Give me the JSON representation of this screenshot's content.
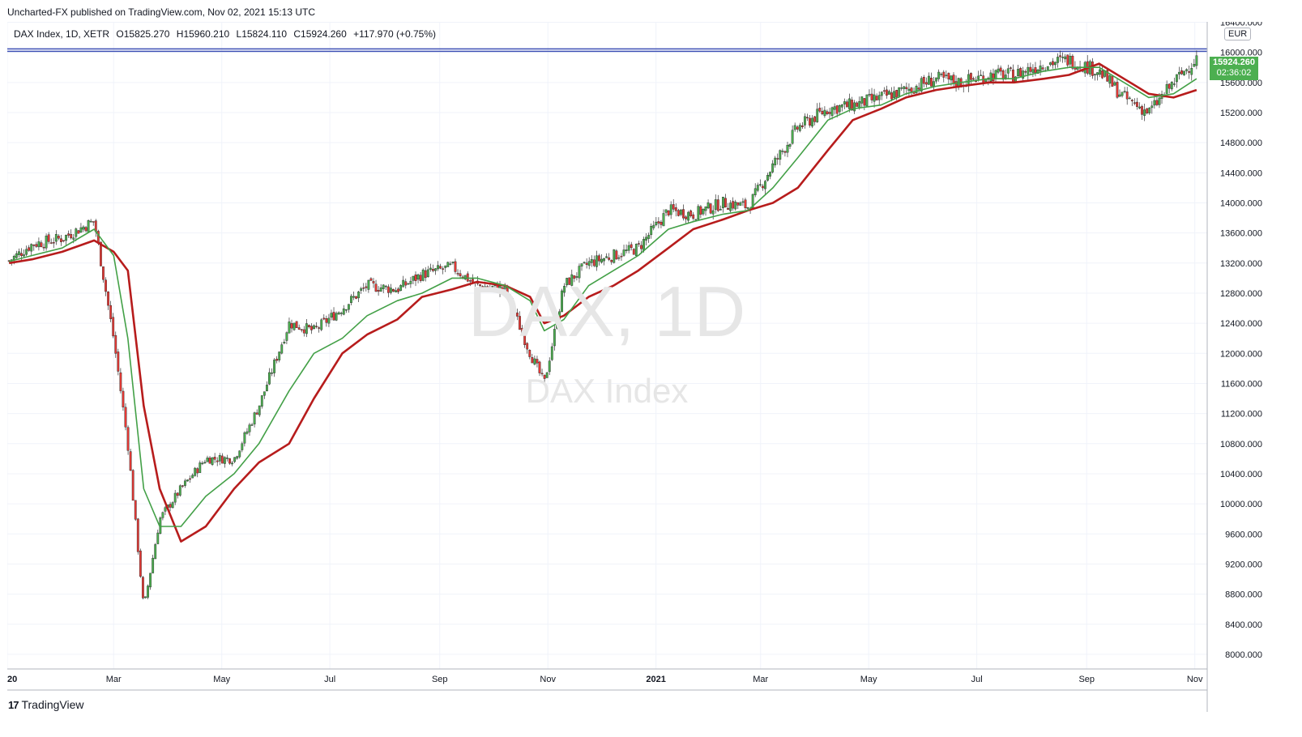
{
  "publisher_line": "Uncharted-FX published on TradingView.com, Nov 02, 2021 15:13 UTC",
  "symbol_info": "DAX Index, 1D, XETR",
  "ohlc": {
    "open": "O15825.270",
    "high": "H15960.210",
    "low": "L15824.110",
    "close": "C15924.260",
    "change": "+117.970 (+0.75%)"
  },
  "currency": "EUR",
  "last_price": {
    "value": "15924.260",
    "countdown": "02:36:02",
    "color": "#4caf50"
  },
  "watermark": {
    "symbol": "DAX, 1D",
    "name": "DAX Index"
  },
  "branding": {
    "logo": "17",
    "name": "TradingView"
  },
  "colors": {
    "up": "#4caf50",
    "down": "#e53935",
    "fast_ma": "#43a047",
    "slow_ma": "#b71c1c",
    "resistance": "#3f51b5"
  },
  "chart_data": {
    "type": "line",
    "title": "",
    "xlabel": "",
    "ylabel": "",
    "ylim": [
      7800,
      16400
    ],
    "grid": true,
    "x_ticks": [
      "2020",
      "Mar",
      "May",
      "Jul",
      "Sep",
      "Nov",
      "2021",
      "Mar",
      "May",
      "Jul",
      "Sep",
      "Nov"
    ],
    "y_ticks": [
      "8000.000",
      "8400.000",
      "8800.000",
      "9200.000",
      "9600.000",
      "10000.000",
      "10400.000",
      "10800.000",
      "11200.000",
      "11600.000",
      "12000.000",
      "12400.000",
      "12800.000",
      "13200.000",
      "13600.000",
      "14000.000",
      "14400.000",
      "14800.000",
      "15200.000",
      "15600.000",
      "16000.000",
      "16400.000"
    ],
    "resistance_level": 16030,
    "x": [
      "2020-01-02",
      "2020-01-15",
      "2020-02-01",
      "2020-02-19",
      "2020-03-01",
      "2020-03-09",
      "2020-03-18",
      "2020-03-27",
      "2020-04-08",
      "2020-04-22",
      "2020-05-08",
      "2020-05-22",
      "2020-06-08",
      "2020-06-22",
      "2020-07-08",
      "2020-07-22",
      "2020-08-08",
      "2020-08-22",
      "2020-09-08",
      "2020-09-22",
      "2020-10-08",
      "2020-10-22",
      "2020-10-30",
      "2020-11-10",
      "2020-11-24",
      "2020-12-08",
      "2020-12-22",
      "2021-01-08",
      "2021-01-22",
      "2021-02-08",
      "2021-02-22",
      "2021-03-08",
      "2021-03-22",
      "2021-04-08",
      "2021-04-22",
      "2021-05-08",
      "2021-05-22",
      "2021-06-08",
      "2021-06-22",
      "2021-07-08",
      "2021-07-22",
      "2021-08-08",
      "2021-08-22",
      "2021-09-08",
      "2021-09-22",
      "2021-10-06",
      "2021-10-20",
      "2021-11-02"
    ],
    "series": [
      {
        "values": [
          13230,
          13450,
          13530,
          13760,
          12200,
          10800,
          8600,
          9800,
          10200,
          10600,
          10600,
          11300,
          12400,
          12300,
          12600,
          12900,
          12850,
          13050,
          13150,
          12900,
          12850,
          12000,
          11600,
          12900,
          13200,
          13300,
          13400,
          13900,
          13850,
          14000,
          13950,
          14500,
          15000,
          15250,
          15300,
          15400,
          15500,
          15650,
          15600,
          15700,
          15700,
          15850,
          15900,
          15750,
          15400,
          15200,
          15600,
          15924
        ]
      },
      {
        "values": [
          13220,
          13300,
          13400,
          13650,
          13300,
          12200,
          10200,
          9700,
          9700,
          10100,
          10400,
          10800,
          11500,
          12000,
          12200,
          12500,
          12700,
          12800,
          13000,
          13000,
          12900,
          12700,
          12300,
          12450,
          12900,
          13100,
          13300,
          13650,
          13750,
          13850,
          13900,
          14200,
          14600,
          15100,
          15250,
          15300,
          15450,
          15550,
          15600,
          15650,
          15650,
          15750,
          15800,
          15800,
          15600,
          15400,
          15450,
          15650
        ]
      },
      {
        "values": [
          13200,
          13250,
          13350,
          13500,
          13350,
          13100,
          11300,
          10200,
          9500,
          9700,
          10200,
          10550,
          10800,
          11400,
          12000,
          12250,
          12450,
          12750,
          12850,
          12950,
          12900,
          12750,
          12400,
          12500,
          12750,
          12900,
          13100,
          13400,
          13650,
          13780,
          13900,
          14000,
          14200,
          14700,
          15100,
          15250,
          15400,
          15500,
          15550,
          15600,
          15600,
          15650,
          15700,
          15850,
          15650,
          15450,
          15400,
          15500
        ]
      }
    ]
  }
}
